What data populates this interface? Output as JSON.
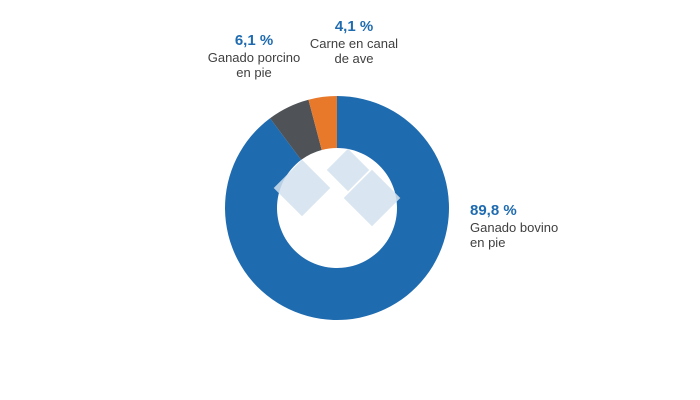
{
  "chart_data": {
    "type": "donut",
    "categories": [
      "Ganado bovino en pie",
      "Ganado porcino en pie",
      "Carne en canal de ave"
    ],
    "values": [
      89.8,
      6.1,
      4.1
    ],
    "value_labels": [
      "89,8 %",
      "6,1 %",
      "4,1 %"
    ],
    "colors": [
      "#1f6bb0",
      "#4f5358",
      "#e8792b"
    ]
  }
}
